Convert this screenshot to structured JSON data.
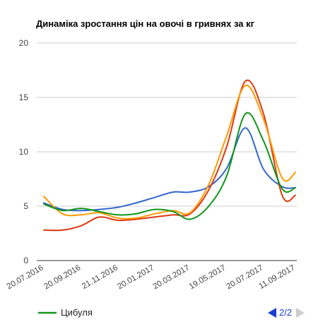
{
  "chart_data": {
    "type": "line",
    "title": "Динаміка зростання цін на овочі в гривнях за кг",
    "xlabel": "",
    "ylabel": "",
    "ylim": [
      0,
      20
    ],
    "y_ticks": [
      "0",
      "5",
      "10",
      "15",
      "20"
    ],
    "x_tick_labels": [
      "20.07.2016",
      "20.09.2016",
      "21.11.2016",
      "20.01.2017",
      "20.03.2017",
      "19.05.2017",
      "20.07.2017",
      "11.09.2017"
    ],
    "grid": true,
    "legend_position": "bottom",
    "legend": {
      "visible_entry": "Цибуля",
      "page_label": "2/2",
      "prev_icon": "triangle-left-icon",
      "next_icon": "triangle-right-icon"
    },
    "x_dates": [
      "20.07.2016",
      "20.08.2016",
      "20.09.2016",
      "20.10.2016",
      "20.11.2016",
      "20.12.2016",
      "20.01.2017",
      "20.02.2017",
      "20.03.2017",
      "20.04.2017",
      "20.05.2017",
      "20.06.2017",
      "20.07.2017",
      "20.08.2017",
      "11.09.2017"
    ],
    "series": [
      {
        "color": "#3366cc",
        "values": [
          5.3,
          4.7,
          4.6,
          4.7,
          4.9,
          5.3,
          5.8,
          6.3,
          6.3,
          6.8,
          8.5,
          12.2,
          8.4,
          6.8,
          6.7
        ]
      },
      {
        "color": "#dc3912",
        "values": [
          2.8,
          2.8,
          3.2,
          4.0,
          3.7,
          3.8,
          4.0,
          4.2,
          4.3,
          6.5,
          10.5,
          16.5,
          13.5,
          6.0,
          6.0
        ]
      },
      {
        "color": "#ff9900",
        "values": [
          5.9,
          4.3,
          4.2,
          4.4,
          3.9,
          3.9,
          4.3,
          4.6,
          4.4,
          7.0,
          11.5,
          16.1,
          13.0,
          7.6,
          8.1
        ]
      },
      {
        "name": "Цибуля",
        "color": "#109618",
        "values": [
          5.2,
          4.6,
          4.8,
          4.5,
          4.2,
          4.3,
          4.7,
          4.5,
          3.8,
          5.0,
          7.8,
          13.5,
          11.0,
          6.6,
          6.7
        ]
      }
    ]
  },
  "colors": {
    "nav_active": "#1a3fd6",
    "nav_inactive": "#cccccc",
    "grid": "#cccccc",
    "axis_text": "#444444",
    "title_text": "#000000"
  }
}
